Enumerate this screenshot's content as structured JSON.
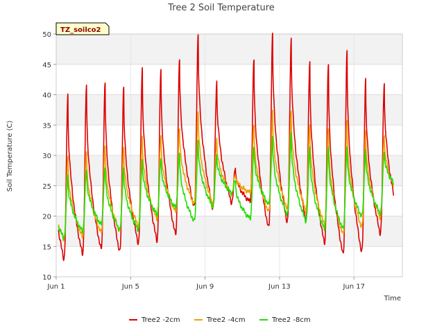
{
  "chart_data": {
    "type": "line",
    "title": "Tree 2 Soil Temperature",
    "xlabel": "Time",
    "ylabel": "Soil Temperature (C)",
    "annotation": "TZ_soilco2",
    "xlim": [
      0,
      18.6
    ],
    "ylim": [
      10,
      50
    ],
    "x_ticks": [
      {
        "day": 0,
        "label": "Jun 1"
      },
      {
        "day": 4,
        "label": "Jun 5"
      },
      {
        "day": 8,
        "label": "Jun 9"
      },
      {
        "day": 12,
        "label": "Jun 13"
      },
      {
        "day": 16,
        "label": "Jun 17"
      }
    ],
    "y_ticks": [
      10,
      15,
      20,
      25,
      30,
      35,
      40,
      45,
      50
    ],
    "grid": true,
    "legend_position": "bottom",
    "x_unit": "days since Jun 1",
    "series": [
      {
        "name": "Tree2 -2cm",
        "color": "#dd0000",
        "daily_min": [
          13.0,
          13.8,
          14.6,
          14.2,
          15.6,
          16.0,
          17.0,
          21.5,
          21.3,
          22.3,
          22.4,
          18.1,
          19.0,
          19.4,
          15.6,
          13.7,
          14.1,
          17.2,
          20.0
        ],
        "daily_max": [
          40.0,
          41.6,
          42.0,
          41.2,
          44.4,
          44.2,
          45.8,
          49.8,
          42.2,
          28.0,
          45.8,
          50.0,
          49.2,
          45.6,
          45.1,
          47.1,
          42.5,
          42.0,
          20.0
        ]
      },
      {
        "name": "Tree2 -4cm",
        "color": "#f0a000",
        "daily_min": [
          16.2,
          16.6,
          17.3,
          17.5,
          18.4,
          19.6,
          20.7,
          22.0,
          22.1,
          23.7,
          23.9,
          20.7,
          21.3,
          21.0,
          18.6,
          17.0,
          18.2,
          19.8,
          23.3
        ],
        "daily_max": [
          29.7,
          30.6,
          31.6,
          31.3,
          33.1,
          33.3,
          34.4,
          37.1,
          32.8,
          26.8,
          35.0,
          37.3,
          37.2,
          35.2,
          34.5,
          35.6,
          33.9,
          33.4,
          23.3
        ]
      },
      {
        "name": "Tree2 -8cm",
        "color": "#22dd00",
        "daily_min": [
          16.5,
          17.5,
          18.6,
          17.8,
          17.8,
          20.3,
          21.4,
          19.2,
          21.6,
          23.8,
          19.6,
          21.9,
          20.3,
          19.3,
          17.9,
          17.9,
          20.0,
          20.5,
          24.4
        ],
        "daily_max": [
          26.7,
          27.6,
          28.0,
          27.9,
          29.3,
          29.5,
          30.4,
          32.4,
          30.1,
          25.9,
          31.4,
          33.0,
          33.7,
          31.6,
          31.5,
          31.2,
          30.8,
          30.7,
          24.4
        ]
      }
    ]
  }
}
